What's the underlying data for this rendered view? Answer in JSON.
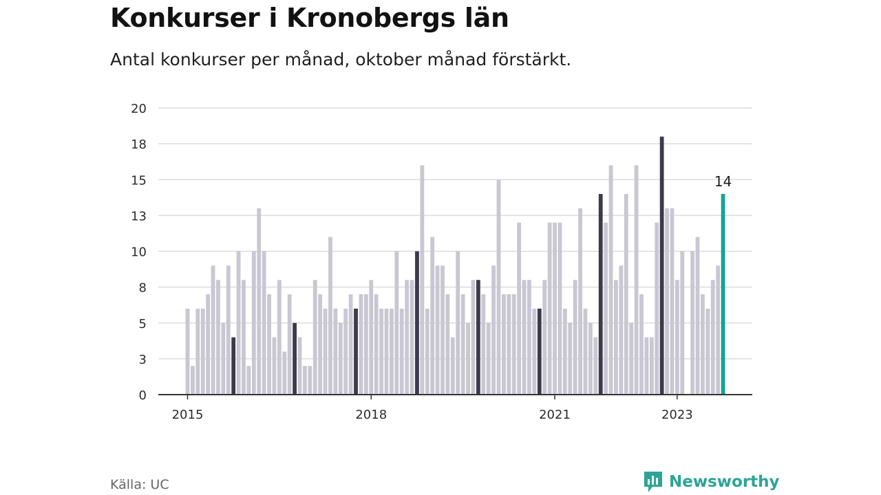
{
  "title": "Konkurser i Kronobergs län",
  "subtitle": "Antal konkurser per månad, oktober månad förstärkt.",
  "source": "Källa: UC",
  "brand": {
    "name": "Newsworthy",
    "icon": "newsworthy-logo-icon"
  },
  "colors": {
    "regular": "#c9c7d2",
    "october": "#3d3b4a",
    "latest": "#15a396",
    "grid": "#dcdcdc",
    "axis": "#333333",
    "brand": "#2aa598"
  },
  "chart_data": {
    "type": "bar",
    "start": "2015-01",
    "x_tick_labels": [
      "2015",
      "2018",
      "2021",
      "2023"
    ],
    "x_tick_positions": [
      "2015-01",
      "2018-01",
      "2021-01",
      "2023-01"
    ],
    "y_tick_labels": [
      "0",
      "3",
      "5",
      "8",
      "10",
      "13",
      "15",
      "18",
      "20"
    ],
    "ylim": [
      0,
      20
    ],
    "grid": true,
    "highlight": "October bars darker; latest month teal",
    "last_value_label": "14",
    "values": [
      6,
      2,
      6,
      6,
      7,
      9,
      8,
      5,
      9,
      4,
      10,
      8,
      2,
      10,
      13,
      10,
      7,
      4,
      8,
      3,
      7,
      5,
      4,
      2,
      2,
      8,
      7,
      6,
      11,
      6,
      5,
      6,
      7,
      6,
      7,
      7,
      8,
      7,
      6,
      6,
      6,
      10,
      6,
      8,
      8,
      10,
      16,
      6,
      11,
      9,
      9,
      7,
      4,
      10,
      7,
      5,
      8,
      8,
      7,
      5,
      9,
      15,
      7,
      7,
      7,
      12,
      8,
      8,
      6,
      6,
      8,
      12,
      12,
      12,
      6,
      5,
      8,
      13,
      6,
      5,
      4,
      14,
      12,
      16,
      8,
      9,
      14,
      5,
      16,
      7,
      4,
      4,
      12,
      18,
      13,
      13,
      8,
      10,
      0,
      10,
      11,
      7,
      6,
      8,
      9,
      14
    ]
  }
}
